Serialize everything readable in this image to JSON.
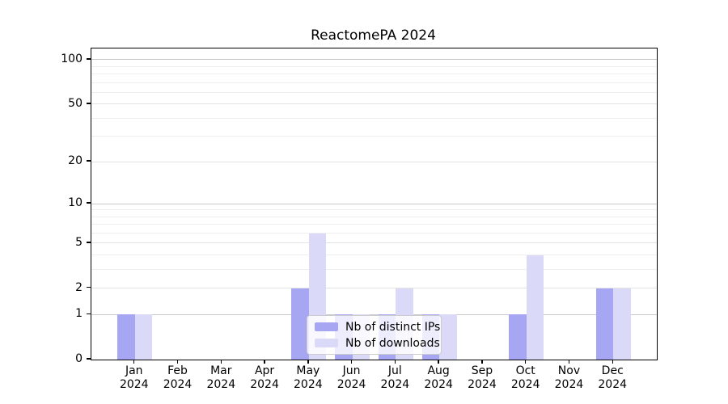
{
  "chart_data": {
    "type": "bar",
    "title": "ReactomePA 2024",
    "categories": [
      "Jan 2024",
      "Feb 2024",
      "Mar 2024",
      "Apr 2024",
      "May 2024",
      "Jun 2024",
      "Jul 2024",
      "Aug 2024",
      "Sep 2024",
      "Oct 2024",
      "Nov 2024",
      "Dec 2024"
    ],
    "series": [
      {
        "name": "Nb of distinct IPs",
        "color": "#a6a6f2",
        "values": [
          1,
          0,
          0,
          0,
          2,
          1,
          1,
          1,
          0,
          1,
          0,
          2
        ]
      },
      {
        "name": "Nb of downloads",
        "color": "#dadaf8",
        "values": [
          1,
          0,
          0,
          0,
          6,
          1,
          2,
          1,
          0,
          4,
          0,
          2
        ]
      }
    ],
    "xlabel": "",
    "ylabel": "",
    "yscale": "log1p",
    "yticks": [
      0,
      1,
      2,
      5,
      10,
      20,
      50,
      100
    ],
    "ylim": [
      0,
      119
    ],
    "grid": "on",
    "legend_position": "lower-center-inside",
    "colors": {
      "major_gridline": "#c9c9c9",
      "labeled_gridline": "#e3e3e3",
      "minor_gridline": "#eeeeee",
      "axis": "#000000",
      "background": "#ffffff"
    }
  }
}
